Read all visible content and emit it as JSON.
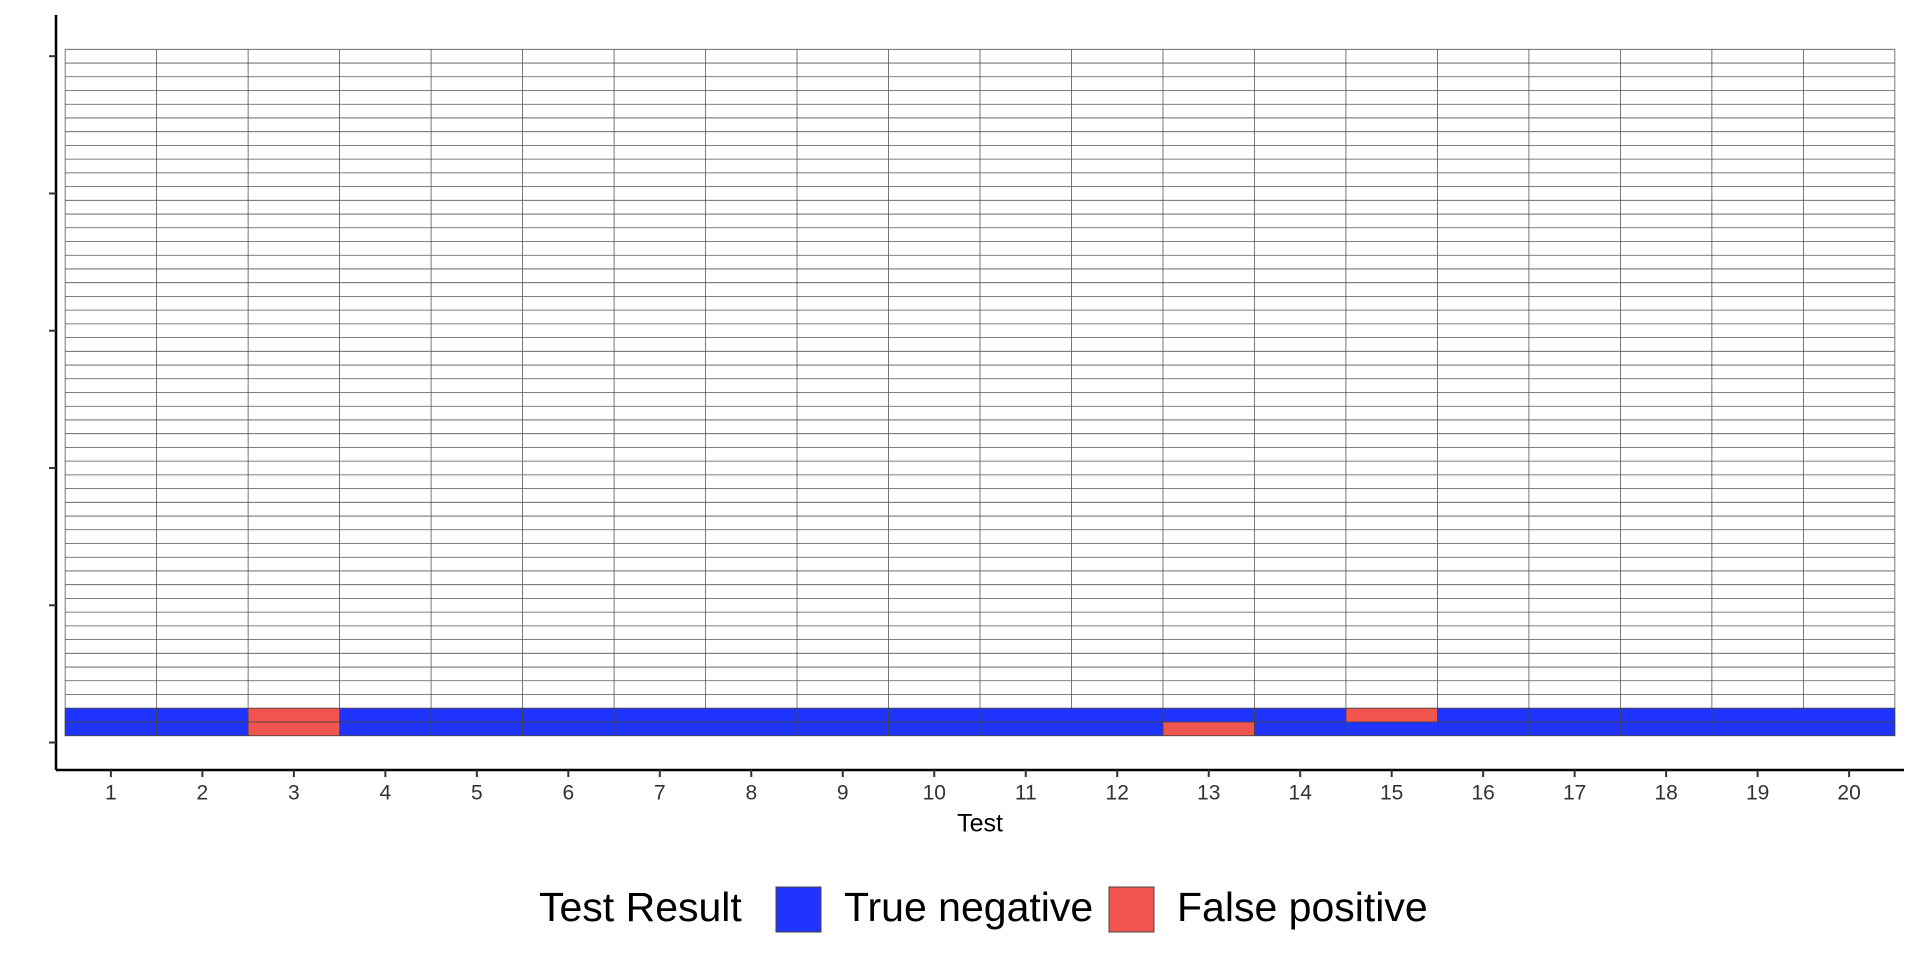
{
  "chart_data": {
    "type": "tile",
    "x_label": "Test",
    "legend_title": "Test Result",
    "xlim": [
      0.4,
      20.6
    ],
    "xticks": [
      1,
      2,
      3,
      4,
      5,
      6,
      7,
      8,
      9,
      10,
      11,
      12,
      13,
      14,
      15,
      16,
      17,
      18,
      19,
      20
    ],
    "ylim": [
      -2,
      53
    ],
    "yticks": [
      0,
      10,
      20,
      30,
      40,
      50
    ],
    "rows": 50,
    "grid": true,
    "legend": "bottom",
    "series": [
      {
        "name": "True negative",
        "color": "#1f35ff",
        "x": [
          1,
          2,
          4,
          5,
          6,
          7,
          8,
          9,
          10,
          11,
          12,
          14,
          15,
          16,
          17,
          18,
          19,
          20,
          1,
          2,
          4,
          5,
          6,
          7,
          8,
          9,
          10,
          11,
          12,
          13,
          14,
          16,
          17,
          18,
          19,
          20
        ],
        "y": [
          1,
          1,
          1,
          1,
          1,
          1,
          1,
          1,
          1,
          1,
          1,
          1,
          1,
          1,
          1,
          1,
          1,
          1,
          2,
          2,
          2,
          2,
          2,
          2,
          2,
          2,
          2,
          2,
          2,
          2,
          2,
          2,
          2,
          2,
          2,
          2
        ]
      },
      {
        "name": "False positive",
        "color": "#f2554d",
        "x": [
          3,
          13,
          3,
          15
        ],
        "y": [
          1,
          1,
          2,
          2
        ]
      }
    ]
  }
}
